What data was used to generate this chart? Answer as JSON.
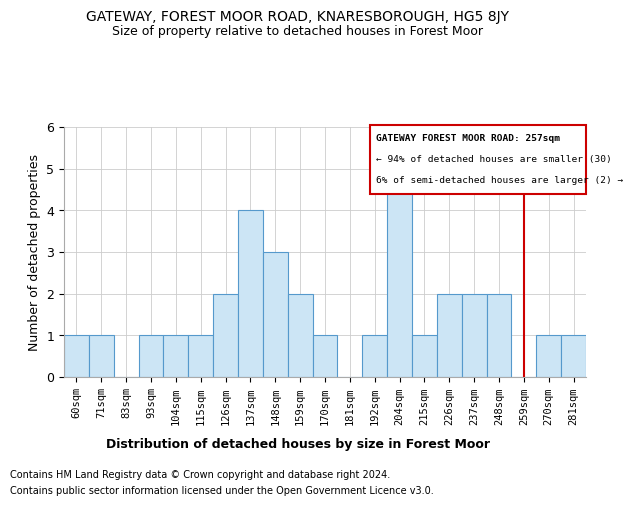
{
  "title": "GATEWAY, FOREST MOOR ROAD, KNARESBOROUGH, HG5 8JY",
  "subtitle": "Size of property relative to detached houses in Forest Moor",
  "xlabel": "Distribution of detached houses by size in Forest Moor",
  "ylabel": "Number of detached properties",
  "footnote1": "Contains HM Land Registry data © Crown copyright and database right 2024.",
  "footnote2": "Contains public sector information licensed under the Open Government Licence v3.0.",
  "bins": [
    "60sqm",
    "71sqm",
    "83sqm",
    "93sqm",
    "104sqm",
    "115sqm",
    "126sqm",
    "137sqm",
    "148sqm",
    "159sqm",
    "170sqm",
    "181sqm",
    "192sqm",
    "204sqm",
    "215sqm",
    "226sqm",
    "237sqm",
    "248sqm",
    "259sqm",
    "270sqm",
    "281sqm"
  ],
  "values": [
    1,
    1,
    0,
    1,
    1,
    1,
    2,
    4,
    3,
    2,
    1,
    0,
    1,
    5,
    1,
    2,
    2,
    2,
    0,
    1,
    1
  ],
  "bar_color": "#cce5f5",
  "bar_edge_color": "#5599cc",
  "grid_color": "#cccccc",
  "vline_x": 18,
  "vline_color": "#cc0000",
  "legend_text1": "GATEWAY FOREST MOOR ROAD: 257sqm",
  "legend_text2": "← 94% of detached houses are smaller (30)",
  "legend_text3": "6% of semi-detached houses are larger (2) →",
  "legend_box_color": "#cc0000",
  "ylim": [
    0,
    6
  ],
  "yticks": [
    0,
    1,
    2,
    3,
    4,
    5,
    6
  ],
  "background_color": "#ffffff",
  "title_fontsize": 10,
  "subtitle_fontsize": 9
}
